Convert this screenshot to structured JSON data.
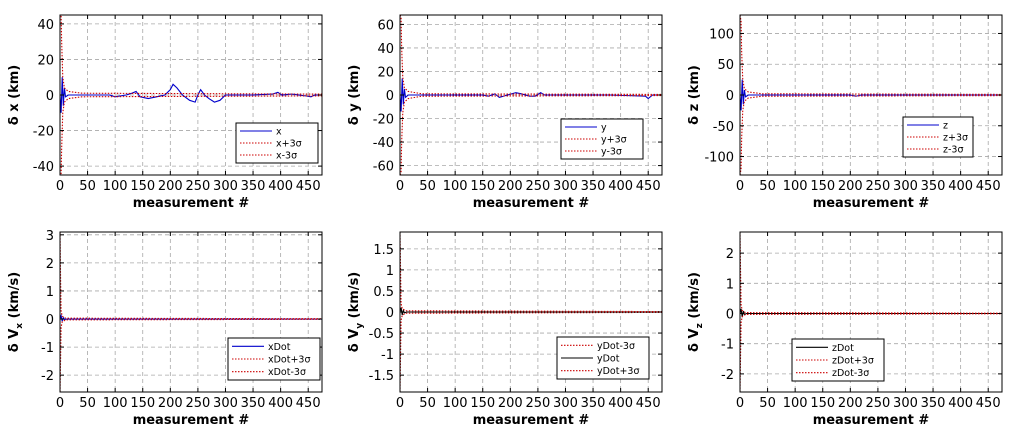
{
  "chart_data": [
    {
      "id": "dx",
      "type": "line",
      "ylabel": "δ x (km)",
      "xlabel": "measurement #",
      "xlim": [
        0,
        475
      ],
      "ylim": [
        -45,
        45
      ],
      "x_ticks": [
        0,
        50,
        100,
        150,
        200,
        250,
        300,
        350,
        400,
        450
      ],
      "y_ticks": [
        -40,
        -20,
        0,
        20,
        40
      ],
      "grid": true,
      "legend_position": "lower-right",
      "series": [
        {
          "name": "x",
          "color": "#0000cc",
          "style": "solid",
          "points": [
            [
              0,
              0
            ],
            [
              2,
              -10
            ],
            [
              4,
              10
            ],
            [
              6,
              -6
            ],
            [
              8,
              4
            ],
            [
              10,
              -1
            ],
            [
              15,
              0
            ],
            [
              60,
              0
            ],
            [
              90,
              0
            ],
            [
              100,
              -1
            ],
            [
              110,
              -0.5
            ],
            [
              120,
              0
            ],
            [
              130,
              1
            ],
            [
              138,
              2
            ],
            [
              145,
              -1
            ],
            [
              160,
              -2
            ],
            [
              175,
              -1
            ],
            [
              190,
              0
            ],
            [
              200,
              3
            ],
            [
              205,
              6
            ],
            [
              212,
              4
            ],
            [
              222,
              0
            ],
            [
              235,
              -3
            ],
            [
              245,
              -4
            ],
            [
              250,
              0
            ],
            [
              255,
              3
            ],
            [
              262,
              0
            ],
            [
              270,
              -2
            ],
            [
              280,
              -4
            ],
            [
              290,
              -3
            ],
            [
              300,
              0
            ],
            [
              350,
              0
            ],
            [
              385,
              0.5
            ],
            [
              395,
              1.5
            ],
            [
              402,
              0
            ],
            [
              420,
              0.5
            ],
            [
              445,
              -0.5
            ],
            [
              455,
              -1
            ],
            [
              462,
              0
            ],
            [
              475,
              0
            ]
          ]
        },
        {
          "name": "x+3σ",
          "color": "#cc0000",
          "style": "dotted",
          "points": [
            [
              0,
              46
            ],
            [
              2,
              45
            ],
            [
              3,
              30
            ],
            [
              5,
              10
            ],
            [
              8,
              4
            ],
            [
              15,
              2
            ],
            [
              40,
              1
            ],
            [
              475,
              0.5
            ]
          ]
        },
        {
          "name": "x-3σ",
          "color": "#cc0000",
          "style": "dotted",
          "points": [
            [
              0,
              -46
            ],
            [
              2,
              -45
            ],
            [
              3,
              -30
            ],
            [
              5,
              -10
            ],
            [
              8,
              -4
            ],
            [
              15,
              -2
            ],
            [
              40,
              -1
            ],
            [
              475,
              -0.5
            ]
          ]
        }
      ]
    },
    {
      "id": "dy",
      "type": "line",
      "ylabel": "δ y (km)",
      "xlabel": "measurement #",
      "xlim": [
        0,
        475
      ],
      "ylim": [
        -68,
        68
      ],
      "x_ticks": [
        0,
        50,
        100,
        150,
        200,
        250,
        300,
        350,
        400,
        450
      ],
      "y_ticks": [
        -60,
        -40,
        -20,
        0,
        20,
        40,
        60
      ],
      "grid": true,
      "legend_position": "lower-right",
      "series": [
        {
          "name": "y",
          "color": "#0000cc",
          "style": "solid",
          "points": [
            [
              0,
              0
            ],
            [
              2,
              -14
            ],
            [
              4,
              14
            ],
            [
              6,
              -8
            ],
            [
              8,
              5
            ],
            [
              10,
              -2
            ],
            [
              15,
              0
            ],
            [
              150,
              0
            ],
            [
              160,
              -1
            ],
            [
              172,
              1
            ],
            [
              180,
              -2
            ],
            [
              195,
              0
            ],
            [
              210,
              2
            ],
            [
              220,
              1
            ],
            [
              235,
              -1
            ],
            [
              245,
              -1
            ],
            [
              255,
              2
            ],
            [
              262,
              0
            ],
            [
              300,
              0
            ],
            [
              380,
              0
            ],
            [
              445,
              -1
            ],
            [
              450,
              -3
            ],
            [
              458,
              0
            ],
            [
              475,
              0
            ]
          ]
        },
        {
          "name": "y+3σ",
          "color": "#cc0000",
          "style": "dotted",
          "points": [
            [
              0,
              68
            ],
            [
              2,
              66
            ],
            [
              3,
              40
            ],
            [
              5,
              15
            ],
            [
              8,
              6
            ],
            [
              15,
              3
            ],
            [
              40,
              1
            ],
            [
              475,
              0.5
            ]
          ]
        },
        {
          "name": "y-3σ",
          "color": "#cc0000",
          "style": "dotted",
          "points": [
            [
              0,
              -68
            ],
            [
              2,
              -66
            ],
            [
              3,
              -40
            ],
            [
              5,
              -15
            ],
            [
              8,
              -6
            ],
            [
              15,
              -3
            ],
            [
              40,
              -1
            ],
            [
              475,
              -0.5
            ]
          ]
        }
      ]
    },
    {
      "id": "dz",
      "type": "line",
      "ylabel": "δ z (km)",
      "xlabel": "measurement #",
      "xlim": [
        0,
        475
      ],
      "ylim": [
        -130,
        130
      ],
      "x_ticks": [
        0,
        50,
        100,
        150,
        200,
        250,
        300,
        350,
        400,
        450
      ],
      "y_ticks": [
        -100,
        -50,
        0,
        50,
        100
      ],
      "grid": true,
      "legend_position": "lower-right",
      "series": [
        {
          "name": "z",
          "color": "#0000cc",
          "style": "solid",
          "points": [
            [
              0,
              0
            ],
            [
              2,
              -25
            ],
            [
              4,
              25
            ],
            [
              6,
              -15
            ],
            [
              8,
              8
            ],
            [
              10,
              -3
            ],
            [
              15,
              0
            ],
            [
              200,
              0
            ],
            [
              210,
              -2
            ],
            [
              220,
              0
            ],
            [
              300,
              0
            ],
            [
              475,
              0
            ]
          ]
        },
        {
          "name": "z+3σ",
          "color": "#cc0000",
          "style": "dotted",
          "points": [
            [
              0,
              130
            ],
            [
              2,
              120
            ],
            [
              3,
              70
            ],
            [
              5,
              25
            ],
            [
              8,
              10
            ],
            [
              15,
              5
            ],
            [
              40,
              2
            ],
            [
              475,
              1
            ]
          ]
        },
        {
          "name": "z-3σ",
          "color": "#cc0000",
          "style": "dotted",
          "points": [
            [
              0,
              -130
            ],
            [
              2,
              -120
            ],
            [
              3,
              -70
            ],
            [
              5,
              -25
            ],
            [
              8,
              -10
            ],
            [
              15,
              -5
            ],
            [
              40,
              -2
            ],
            [
              475,
              -1
            ]
          ]
        }
      ]
    },
    {
      "id": "dvx",
      "type": "line",
      "ylabel": "δ V",
      "ylabel_sub": "x",
      "ylabel_unit": "(km/s)",
      "xlabel": "measurement #",
      "xlim": [
        0,
        475
      ],
      "ylim": [
        -2.6,
        3.1
      ],
      "x_ticks": [
        0,
        50,
        100,
        150,
        200,
        250,
        300,
        350,
        400,
        450
      ],
      "y_ticks": [
        -2,
        -1,
        0,
        1,
        2,
        3
      ],
      "grid": true,
      "legend_position": "lower-right",
      "series": [
        {
          "name": "xDot",
          "color": "#0000cc",
          "style": "solid",
          "points": [
            [
              0,
              0
            ],
            [
              2,
              0.12
            ],
            [
              4,
              -0.08
            ],
            [
              6,
              0.05
            ],
            [
              8,
              -0.02
            ],
            [
              12,
              0
            ],
            [
              475,
              0
            ]
          ]
        },
        {
          "name": "xDot+3σ",
          "color": "#cc0000",
          "style": "dotted",
          "points": [
            [
              0,
              3.2
            ],
            [
              1,
              1.5
            ],
            [
              2,
              0.3
            ],
            [
              4,
              0.1
            ],
            [
              10,
              0.03
            ],
            [
              475,
              0.01
            ]
          ]
        },
        {
          "name": "xDot-3σ",
          "color": "#cc0000",
          "style": "dotted",
          "points": [
            [
              0,
              -2.7
            ],
            [
              1,
              -1.5
            ],
            [
              2,
              -0.3
            ],
            [
              4,
              -0.1
            ],
            [
              10,
              -0.03
            ],
            [
              475,
              -0.01
            ]
          ]
        }
      ]
    },
    {
      "id": "dvy",
      "type": "line",
      "ylabel": "δ V",
      "ylabel_sub": "y",
      "ylabel_unit": "(km/s)",
      "xlabel": "measurement #",
      "xlim": [
        0,
        475
      ],
      "ylim": [
        -1.9,
        1.9
      ],
      "x_ticks": [
        0,
        50,
        100,
        150,
        200,
        250,
        300,
        350,
        400,
        450
      ],
      "y_ticks": [
        -1.5,
        -1,
        -0.5,
        0,
        0.5,
        1,
        1.5
      ],
      "grid": true,
      "legend_position": "lower-right",
      "series": [
        {
          "name": "yDot-3σ",
          "color": "#cc0000",
          "style": "dotted",
          "points": [
            [
              0,
              -1.9
            ],
            [
              1,
              -1.0
            ],
            [
              2,
              -0.2
            ],
            [
              4,
              -0.08
            ],
            [
              10,
              -0.03
            ],
            [
              475,
              -0.01
            ]
          ]
        },
        {
          "name": "yDot",
          "color": "#000000",
          "style": "solid",
          "points": [
            [
              0,
              0
            ],
            [
              2,
              0.1
            ],
            [
              4,
              -0.07
            ],
            [
              6,
              0.04
            ],
            [
              8,
              -0.02
            ],
            [
              12,
              0
            ],
            [
              475,
              0
            ]
          ]
        },
        {
          "name": "yDot+3σ",
          "color": "#cc0000",
          "style": "dotted",
          "points": [
            [
              0,
              1.9
            ],
            [
              1,
              1.0
            ],
            [
              2,
              0.2
            ],
            [
              4,
              0.08
            ],
            [
              10,
              0.03
            ],
            [
              475,
              0.01
            ]
          ]
        }
      ]
    },
    {
      "id": "dvz",
      "type": "line",
      "ylabel": "δ V",
      "ylabel_sub": "z",
      "ylabel_unit": "(km/s)",
      "xlabel": "measurement #",
      "xlim": [
        0,
        475
      ],
      "ylim": [
        -2.6,
        2.7
      ],
      "x_ticks": [
        0,
        50,
        100,
        150,
        200,
        250,
        300,
        350,
        400,
        450
      ],
      "y_ticks": [
        -2,
        -1,
        0,
        1,
        2
      ],
      "grid": true,
      "legend_position": "lower-right",
      "series": [
        {
          "name": "zDot",
          "color": "#000000",
          "style": "solid",
          "points": [
            [
              0,
              0
            ],
            [
              2,
              0.15
            ],
            [
              4,
              -0.12
            ],
            [
              6,
              0.08
            ],
            [
              8,
              -0.03
            ],
            [
              12,
              0
            ],
            [
              475,
              0
            ]
          ]
        },
        {
          "name": "zDot+3σ",
          "color": "#cc0000",
          "style": "dotted",
          "points": [
            [
              0,
              2.7
            ],
            [
              1,
              1.4
            ],
            [
              2,
              0.3
            ],
            [
              4,
              0.1
            ],
            [
              10,
              0.03
            ],
            [
              475,
              0.01
            ]
          ]
        },
        {
          "name": "zDot-3σ",
          "color": "#cc0000",
          "style": "dotted",
          "points": [
            [
              0,
              -2.6
            ],
            [
              1,
              -1.4
            ],
            [
              2,
              -0.3
            ],
            [
              4,
              -0.1
            ],
            [
              10,
              -0.03
            ],
            [
              475,
              -0.01
            ]
          ]
        }
      ]
    }
  ]
}
